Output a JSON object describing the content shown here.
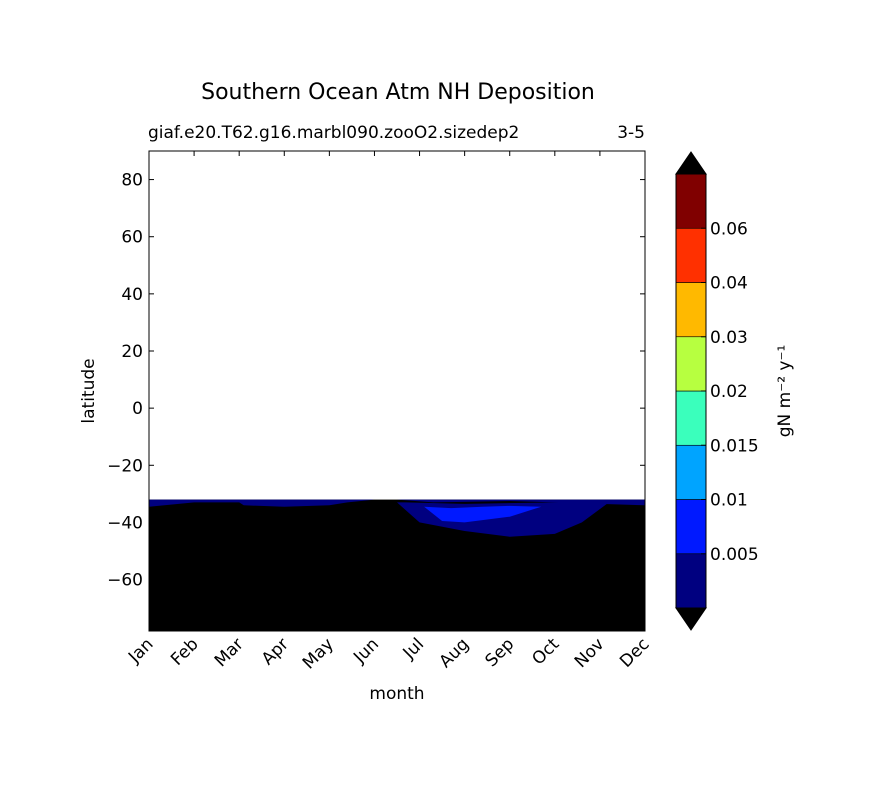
{
  "chart_data": {
    "type": "heatmap",
    "title": "Southern Ocean Atm NH Deposition",
    "subtitle_left": "giaf.e20.T62.g16.marbl090.zooO2.sizedep2",
    "subtitle_right": "3-5",
    "xlabel": "month",
    "ylabel": "latitude",
    "x_categories": [
      "Jan",
      "Feb",
      "Mar",
      "Apr",
      "May",
      "Jun",
      "Jul",
      "Aug",
      "Sep",
      "Oct",
      "Nov",
      "Dec"
    ],
    "ylim": [
      -78,
      90
    ],
    "yticks": [
      80,
      60,
      40,
      20,
      0,
      -20,
      -40,
      -60
    ],
    "ytick_labels": [
      "80",
      "60",
      "40",
      "20",
      "0",
      "−20",
      "−40",
      "−60"
    ],
    "data_domain_lat": [
      -78,
      -32
    ],
    "colorbar": {
      "label": "gN m⁻² y⁻¹",
      "levels": [
        0,
        0.005,
        0.01,
        0.015,
        0.02,
        0.03,
        0.04,
        0.06,
        0.08
      ],
      "colors": [
        "#000080",
        "#0019ff",
        "#00a4ff",
        "#3affbc",
        "#b7ff40",
        "#ffb900",
        "#ff3000",
        "#800000"
      ],
      "under_color": "#000000",
      "over_color": "#000000",
      "tick_labels": [
        "0.005",
        "0.01",
        "0.015",
        "0.02",
        "0.03",
        "0.04",
        "0.06"
      ]
    },
    "regions": [
      {
        "level": "below 0",
        "color": "#000000",
        "description_lat_range": [
          -78,
          -32
        ]
      },
      {
        "level": "0-0.005",
        "color": "#000080",
        "boundary": [
          [
            0.0,
            -32
          ],
          [
            0.0,
            -34.5
          ],
          [
            1.0,
            -33
          ],
          [
            2.0,
            -33
          ],
          [
            2.1,
            -34
          ],
          [
            3.0,
            -34.5
          ],
          [
            4.0,
            -34
          ],
          [
            4.4,
            -33
          ],
          [
            5.0,
            -32
          ]
        ]
      },
      {
        "level": "0-0.005",
        "color": "#000080",
        "boundary": [
          [
            5.5,
            -32
          ],
          [
            6.3,
            -33
          ],
          [
            7.0,
            -32.8
          ],
          [
            8.0,
            -32.5
          ],
          [
            9.0,
            -33
          ],
          [
            10.0,
            -33.5
          ],
          [
            11.0,
            -34
          ],
          [
            11.0,
            -32
          ]
        ]
      },
      {
        "level": "0-0.005",
        "color": "#000080",
        "boundary": [
          [
            5.5,
            -33
          ],
          [
            6.0,
            -40
          ],
          [
            7.0,
            -43
          ],
          [
            8.0,
            -45
          ],
          [
            9.0,
            -44
          ],
          [
            9.6,
            -40
          ],
          [
            10.2,
            -33
          ],
          [
            9.0,
            -33
          ],
          [
            7.0,
            -33.5
          ],
          [
            5.7,
            -33
          ]
        ]
      },
      {
        "level": "0.005-0.01",
        "color": "#0019ff",
        "boundary": [
          [
            6.1,
            -34.5
          ],
          [
            6.7,
            -35
          ],
          [
            7.4,
            -34.5
          ],
          [
            8.0,
            -34.2
          ],
          [
            8.7,
            -34.5
          ],
          [
            8.0,
            -38
          ],
          [
            7.0,
            -40
          ],
          [
            6.5,
            -39.5
          ]
        ]
      }
    ]
  }
}
